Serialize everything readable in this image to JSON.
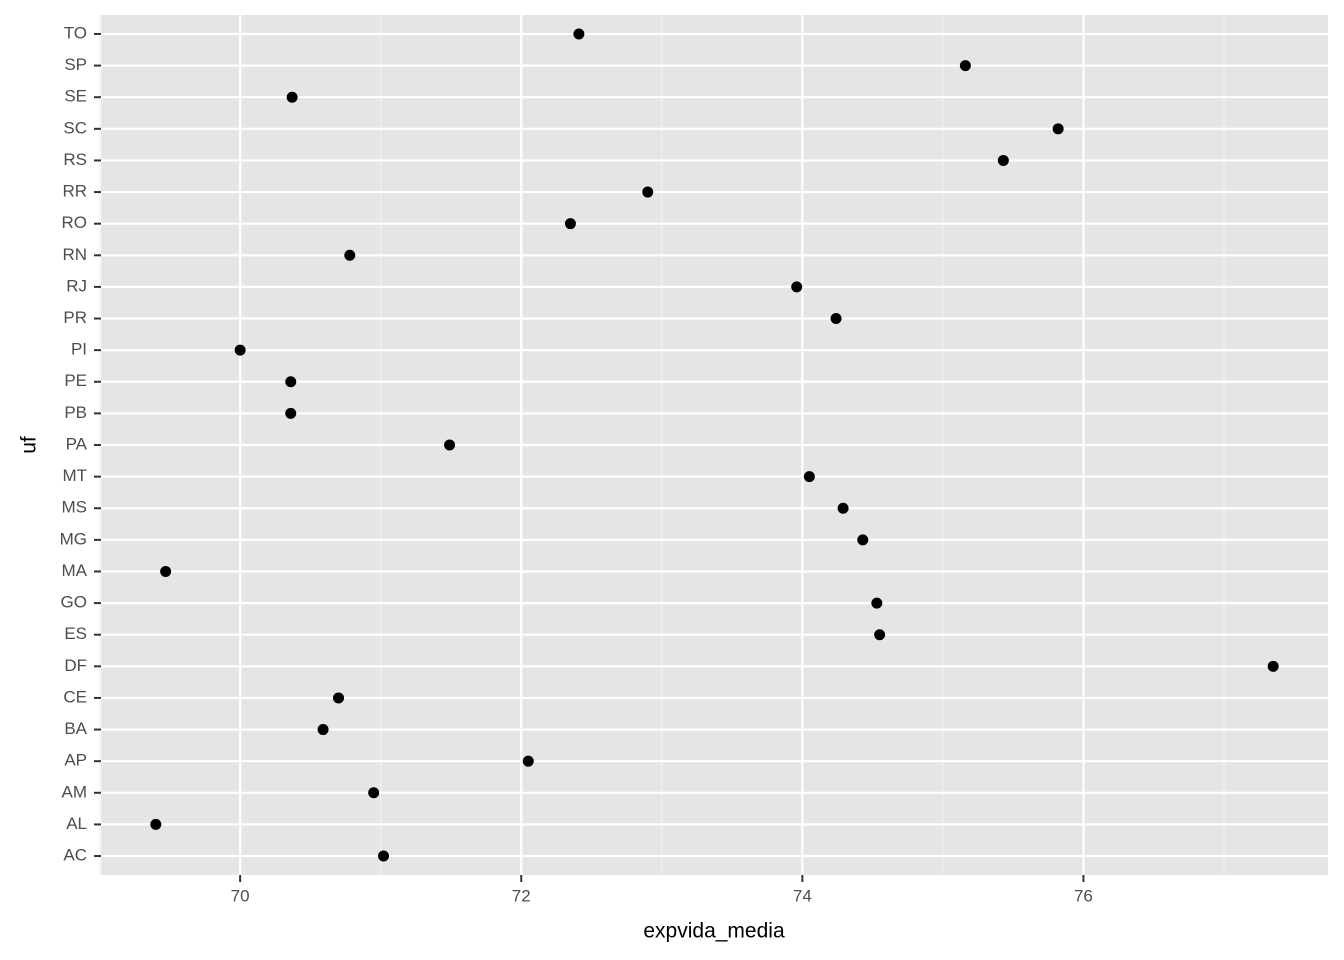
{
  "chart_data": {
    "type": "scatter",
    "x_label": "expvida_media",
    "y_label": "uf",
    "categories": [
      "AC",
      "AL",
      "AM",
      "AP",
      "BA",
      "CE",
      "DF",
      "ES",
      "GO",
      "MA",
      "MG",
      "MS",
      "MT",
      "PA",
      "PB",
      "PE",
      "PI",
      "PR",
      "RJ",
      "RN",
      "RO",
      "RR",
      "RS",
      "SC",
      "SE",
      "SP",
      "TO"
    ],
    "values": [
      71.02,
      69.4,
      70.95,
      72.05,
      70.59,
      70.7,
      77.35,
      74.55,
      74.53,
      69.47,
      74.43,
      74.29,
      74.05,
      71.49,
      70.36,
      70.36,
      70.0,
      74.24,
      73.96,
      70.78,
      72.35,
      72.9,
      75.43,
      75.82,
      70.37,
      75.16,
      72.41
    ],
    "color": "#000000",
    "xlim": [
      69.01,
      77.74
    ],
    "xticks": [
      70,
      72,
      74,
      76
    ],
    "minor_xticks": [
      69,
      71,
      73,
      75,
      77
    ],
    "grid": true,
    "panel_color": "#e5e5e5"
  }
}
